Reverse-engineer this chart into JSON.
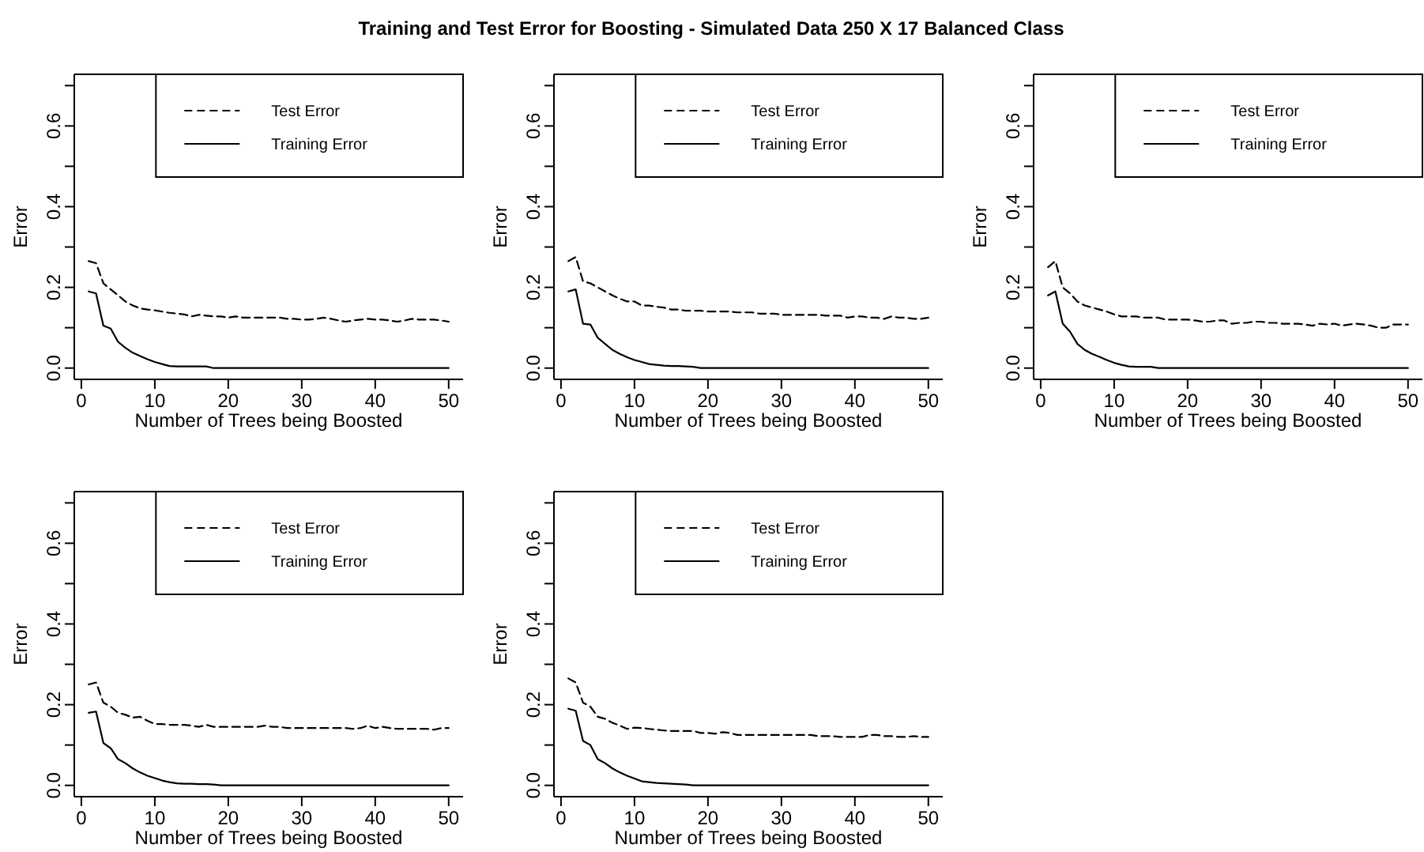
{
  "chart_data": [
    {
      "type": "line",
      "title": "Training and Test Error for Boosting - Simulated Data 250 X 17 Balanced Class",
      "xlabel": "Number of Trees being Boosted",
      "ylabel": "Error",
      "legend": "top right",
      "xlim": [
        -0.96,
        51.96
      ],
      "ylim": [
        -0.028,
        0.728
      ],
      "xticks": [
        0,
        10,
        20,
        30,
        40,
        50
      ],
      "yticks": [
        {
          "value": 0,
          "label": "0.0"
        },
        {
          "value": 0.1,
          "label": null
        },
        0.2,
        {
          "value": 0.3,
          "label": null
        },
        0.4,
        {
          "value": 0.5,
          "label": null
        },
        0.6,
        {
          "value": 0.7,
          "label": null
        }
      ],
      "x": [
        1,
        2,
        3,
        4,
        5,
        6,
        7,
        8,
        9,
        10,
        11,
        12,
        13,
        14,
        15,
        16,
        17,
        18,
        19,
        20,
        21,
        22,
        23,
        24,
        25,
        26,
        27,
        28,
        29,
        30,
        31,
        32,
        33,
        34,
        35,
        36,
        37,
        38,
        39,
        40,
        41,
        42,
        43,
        44,
        45,
        46,
        47,
        48,
        49,
        50
      ],
      "series": [
        {
          "name": "Test Error",
          "color": "#000000",
          "line_style": "dashed",
          "values": [
            0.265,
            0.26,
            0.21,
            0.195,
            0.18,
            0.165,
            0.155,
            0.148,
            0.145,
            0.143,
            0.14,
            0.137,
            0.135,
            0.133,
            0.128,
            0.132,
            0.13,
            0.128,
            0.128,
            0.125,
            0.128,
            0.125,
            0.125,
            0.125,
            0.125,
            0.125,
            0.125,
            0.122,
            0.122,
            0.12,
            0.12,
            0.122,
            0.125,
            0.122,
            0.118,
            0.115,
            0.118,
            0.12,
            0.122,
            0.12,
            0.12,
            0.118,
            0.115,
            0.118,
            0.122,
            0.12,
            0.12,
            0.12,
            0.118,
            0.115
          ]
        },
        {
          "name": "Training Error",
          "color": "#000000",
          "line_style": "solid",
          "values": [
            0.19,
            0.185,
            0.105,
            0.098,
            0.065,
            0.05,
            0.038,
            0.03,
            0.022,
            0.015,
            0.01,
            0.005,
            0.004,
            0.004,
            0.004,
            0.004,
            0.004,
            0,
            0,
            0,
            0,
            0,
            0,
            0,
            0,
            0,
            0,
            0,
            0,
            0,
            0,
            0,
            0,
            0,
            0,
            0,
            0,
            0,
            0,
            0,
            0,
            0,
            0,
            0,
            0,
            0,
            0,
            0,
            0,
            0
          ]
        }
      ]
    },
    {
      "type": "line",
      "xlabel": "Number of Trees being Boosted",
      "ylabel": "Error",
      "legend": "top right",
      "xlim": [
        -0.96,
        51.96
      ],
      "ylim": [
        -0.028,
        0.728
      ],
      "xticks": [
        0,
        10,
        20,
        30,
        40,
        50
      ],
      "yticks": [
        {
          "value": 0,
          "label": "0.0"
        },
        {
          "value": 0.1,
          "label": null
        },
        0.2,
        {
          "value": 0.3,
          "label": null
        },
        0.4,
        {
          "value": 0.5,
          "label": null
        },
        0.6,
        {
          "value": 0.7,
          "label": null
        }
      ],
      "x": [
        1,
        2,
        3,
        4,
        5,
        6,
        7,
        8,
        9,
        10,
        11,
        12,
        13,
        14,
        15,
        16,
        17,
        18,
        19,
        20,
        21,
        22,
        23,
        24,
        25,
        26,
        27,
        28,
        29,
        30,
        31,
        32,
        33,
        34,
        35,
        36,
        37,
        38,
        39,
        40,
        41,
        42,
        43,
        44,
        45,
        46,
        47,
        48,
        49,
        50
      ],
      "series": [
        {
          "name": "Test Error",
          "color": "#000000",
          "line_style": "dashed",
          "values": [
            0.265,
            0.275,
            0.215,
            0.21,
            0.2,
            0.19,
            0.18,
            0.172,
            0.165,
            0.165,
            0.155,
            0.155,
            0.152,
            0.15,
            0.145,
            0.145,
            0.142,
            0.142,
            0.142,
            0.14,
            0.14,
            0.14,
            0.14,
            0.138,
            0.138,
            0.138,
            0.135,
            0.135,
            0.135,
            0.132,
            0.132,
            0.132,
            0.132,
            0.132,
            0.132,
            0.13,
            0.13,
            0.13,
            0.125,
            0.128,
            0.128,
            0.125,
            0.125,
            0.122,
            0.128,
            0.125,
            0.125,
            0.122,
            0.122,
            0.125
          ]
        },
        {
          "name": "Training Error",
          "color": "#000000",
          "line_style": "solid",
          "values": [
            0.19,
            0.195,
            0.11,
            0.108,
            0.075,
            0.06,
            0.045,
            0.035,
            0.027,
            0.02,
            0.015,
            0.01,
            0.008,
            0.006,
            0.005,
            0.005,
            0.004,
            0.003,
            0,
            0,
            0,
            0,
            0,
            0,
            0,
            0,
            0,
            0,
            0,
            0,
            0,
            0,
            0,
            0,
            0,
            0,
            0,
            0,
            0,
            0,
            0,
            0,
            0,
            0,
            0,
            0,
            0,
            0,
            0,
            0
          ]
        }
      ]
    },
    {
      "type": "line",
      "xlabel": "Number of Trees being Boosted",
      "ylabel": "Error",
      "legend": "top right",
      "xlim": [
        -0.96,
        51.96
      ],
      "ylim": [
        -0.028,
        0.728
      ],
      "xticks": [
        0,
        10,
        20,
        30,
        40,
        50
      ],
      "yticks": [
        {
          "value": 0,
          "label": "0.0"
        },
        {
          "value": 0.1,
          "label": null
        },
        0.2,
        {
          "value": 0.3,
          "label": null
        },
        0.4,
        {
          "value": 0.5,
          "label": null
        },
        0.6,
        {
          "value": 0.7,
          "label": null
        }
      ],
      "x": [
        1,
        2,
        3,
        4,
        5,
        6,
        7,
        8,
        9,
        10,
        11,
        12,
        13,
        14,
        15,
        16,
        17,
        18,
        19,
        20,
        21,
        22,
        23,
        24,
        25,
        26,
        27,
        28,
        29,
        30,
        31,
        32,
        33,
        34,
        35,
        36,
        37,
        38,
        39,
        40,
        41,
        42,
        43,
        44,
        45,
        46,
        47,
        48,
        49,
        50
      ],
      "series": [
        {
          "name": "Test Error",
          "color": "#000000",
          "line_style": "dashed",
          "values": [
            0.25,
            0.265,
            0.2,
            0.185,
            0.165,
            0.155,
            0.15,
            0.145,
            0.14,
            0.133,
            0.128,
            0.128,
            0.128,
            0.125,
            0.125,
            0.125,
            0.12,
            0.12,
            0.12,
            0.12,
            0.118,
            0.115,
            0.115,
            0.118,
            0.118,
            0.11,
            0.112,
            0.112,
            0.115,
            0.115,
            0.112,
            0.112,
            0.11,
            0.11,
            0.11,
            0.108,
            0.105,
            0.11,
            0.108,
            0.11,
            0.105,
            0.108,
            0.11,
            0.108,
            0.105,
            0.1,
            0.1,
            0.108,
            0.108,
            0.108
          ]
        },
        {
          "name": "Training Error",
          "color": "#000000",
          "line_style": "solid",
          "values": [
            0.18,
            0.19,
            0.11,
            0.09,
            0.06,
            0.045,
            0.035,
            0.028,
            0.02,
            0.013,
            0.008,
            0.004,
            0.003,
            0.003,
            0.003,
            0,
            0,
            0,
            0,
            0,
            0,
            0,
            0,
            0,
            0,
            0,
            0,
            0,
            0,
            0,
            0,
            0,
            0,
            0,
            0,
            0,
            0,
            0,
            0,
            0,
            0,
            0,
            0,
            0,
            0,
            0,
            0,
            0,
            0,
            0
          ]
        }
      ]
    },
    {
      "type": "line",
      "xlabel": "Number of Trees being Boosted",
      "ylabel": "Error",
      "legend": "top right",
      "xlim": [
        -0.96,
        51.96
      ],
      "ylim": [
        -0.028,
        0.728
      ],
      "xticks": [
        0,
        10,
        20,
        30,
        40,
        50
      ],
      "yticks": [
        {
          "value": 0,
          "label": "0.0"
        },
        {
          "value": 0.1,
          "label": null
        },
        0.2,
        {
          "value": 0.3,
          "label": null
        },
        0.4,
        {
          "value": 0.5,
          "label": null
        },
        0.6,
        {
          "value": 0.7,
          "label": null
        }
      ],
      "x": [
        1,
        2,
        3,
        4,
        5,
        6,
        7,
        8,
        9,
        10,
        11,
        12,
        13,
        14,
        15,
        16,
        17,
        18,
        19,
        20,
        21,
        22,
        23,
        24,
        25,
        26,
        27,
        28,
        29,
        30,
        31,
        32,
        33,
        34,
        35,
        36,
        37,
        38,
        39,
        40,
        41,
        42,
        43,
        44,
        45,
        46,
        47,
        48,
        49,
        50
      ],
      "series": [
        {
          "name": "Test Error",
          "color": "#000000",
          "line_style": "dashed",
          "values": [
            0.25,
            0.255,
            0.205,
            0.195,
            0.18,
            0.175,
            0.168,
            0.17,
            0.16,
            0.152,
            0.152,
            0.15,
            0.15,
            0.15,
            0.148,
            0.145,
            0.15,
            0.145,
            0.145,
            0.145,
            0.145,
            0.145,
            0.145,
            0.145,
            0.148,
            0.145,
            0.145,
            0.142,
            0.142,
            0.142,
            0.142,
            0.142,
            0.142,
            0.142,
            0.142,
            0.142,
            0.14,
            0.142,
            0.148,
            0.142,
            0.145,
            0.142,
            0.14,
            0.14,
            0.14,
            0.14,
            0.14,
            0.138,
            0.142,
            0.142
          ]
        },
        {
          "name": "Training Error",
          "color": "#000000",
          "line_style": "solid",
          "values": [
            0.18,
            0.183,
            0.105,
            0.092,
            0.065,
            0.055,
            0.042,
            0.032,
            0.024,
            0.018,
            0.012,
            0.008,
            0.005,
            0.004,
            0.004,
            0.003,
            0.003,
            0.002,
            0,
            0,
            0,
            0,
            0,
            0,
            0,
            0,
            0,
            0,
            0,
            0,
            0,
            0,
            0,
            0,
            0,
            0,
            0,
            0,
            0,
            0,
            0,
            0,
            0,
            0,
            0,
            0,
            0,
            0,
            0,
            0
          ]
        }
      ]
    },
    {
      "type": "line",
      "xlabel": "Number of Trees being Boosted",
      "ylabel": "Error",
      "legend": "top right",
      "xlim": [
        -0.96,
        51.96
      ],
      "ylim": [
        -0.028,
        0.728
      ],
      "xticks": [
        0,
        10,
        20,
        30,
        40,
        50
      ],
      "yticks": [
        {
          "value": 0,
          "label": "0.0"
        },
        {
          "value": 0.1,
          "label": null
        },
        0.2,
        {
          "value": 0.3,
          "label": null
        },
        0.4,
        {
          "value": 0.5,
          "label": null
        },
        0.6,
        {
          "value": 0.7,
          "label": null
        }
      ],
      "x": [
        1,
        2,
        3,
        4,
        5,
        6,
        7,
        8,
        9,
        10,
        11,
        12,
        13,
        14,
        15,
        16,
        17,
        18,
        19,
        20,
        21,
        22,
        23,
        24,
        25,
        26,
        27,
        28,
        29,
        30,
        31,
        32,
        33,
        34,
        35,
        36,
        37,
        38,
        39,
        40,
        41,
        42,
        43,
        44,
        45,
        46,
        47,
        48,
        49,
        50
      ],
      "series": [
        {
          "name": "Test Error",
          "color": "#000000",
          "line_style": "dashed",
          "values": [
            0.265,
            0.255,
            0.205,
            0.195,
            0.17,
            0.165,
            0.155,
            0.148,
            0.14,
            0.143,
            0.142,
            0.14,
            0.138,
            0.136,
            0.135,
            0.135,
            0.135,
            0.135,
            0.13,
            0.13,
            0.128,
            0.132,
            0.13,
            0.125,
            0.125,
            0.125,
            0.125,
            0.125,
            0.125,
            0.125,
            0.125,
            0.125,
            0.125,
            0.125,
            0.122,
            0.122,
            0.122,
            0.12,
            0.12,
            0.12,
            0.12,
            0.125,
            0.125,
            0.122,
            0.122,
            0.12,
            0.12,
            0.122,
            0.12,
            0.12
          ]
        },
        {
          "name": "Training Error",
          "color": "#000000",
          "line_style": "solid",
          "values": [
            0.19,
            0.185,
            0.11,
            0.1,
            0.065,
            0.055,
            0.042,
            0.032,
            0.024,
            0.017,
            0.01,
            0.008,
            0.006,
            0.005,
            0.004,
            0.003,
            0.002,
            0,
            0,
            0,
            0,
            0,
            0,
            0,
            0,
            0,
            0,
            0,
            0,
            0,
            0,
            0,
            0,
            0,
            0,
            0,
            0,
            0,
            0,
            0,
            0,
            0,
            0,
            0,
            0,
            0,
            0,
            0,
            0,
            0
          ]
        }
      ]
    }
  ]
}
